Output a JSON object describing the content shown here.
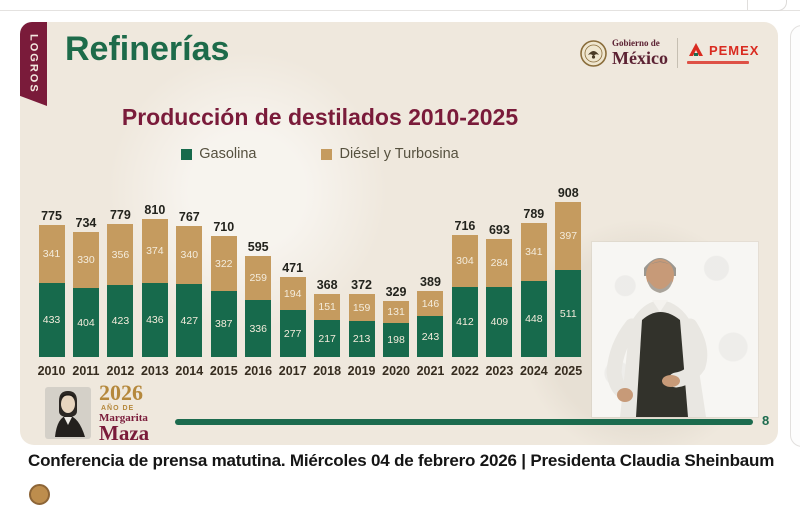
{
  "page": {
    "caption": "Conferencia de prensa matutina. Miércoles 04 de febrero 2026 | Presidenta Claudia Sheinbaum"
  },
  "slide": {
    "ribbon_label": "LOGROS",
    "title": "Refinerías",
    "logos": {
      "gobierno_line1": "Gobierno de",
      "gobierno_line2": "México",
      "pemex_label": "PEMEX"
    },
    "year_logo": {
      "year": "2026",
      "line1": "AÑO DE",
      "line2": "Margarita",
      "line3": "Maza"
    },
    "progress_label": "8"
  },
  "colors": {
    "maroon": "#7a1b3a",
    "green": "#176a4c",
    "tan": "#c59b5f",
    "slide_bg": "#efe8dd"
  },
  "chart_data": {
    "type": "bar",
    "stacked": true,
    "title": "Producción de destilados  2010-2025",
    "legend_position": "top",
    "categories": [
      "2010",
      "2011",
      "2012",
      "2013",
      "2014",
      "2015",
      "2016",
      "2017",
      "2018",
      "2019",
      "2020",
      "2021",
      "2022",
      "2023",
      "2024",
      "2025"
    ],
    "series": [
      {
        "name": "Gasolina",
        "color": "#176a4c",
        "values": [
          433,
          404,
          423,
          436,
          427,
          387,
          336,
          277,
          217,
          213,
          198,
          243,
          412,
          409,
          448,
          511
        ]
      },
      {
        "name": "Diésel y Turbosina",
        "color": "#c59b5f",
        "values": [
          341,
          330,
          356,
          374,
          340,
          322,
          259,
          194,
          151,
          159,
          131,
          146,
          304,
          284,
          341,
          397
        ]
      }
    ],
    "totals": [
      775,
      734,
      779,
      810,
      767,
      710,
      595,
      471,
      368,
      372,
      329,
      389,
      716,
      693,
      789,
      908
    ],
    "ylim": [
      0,
      908
    ]
  }
}
